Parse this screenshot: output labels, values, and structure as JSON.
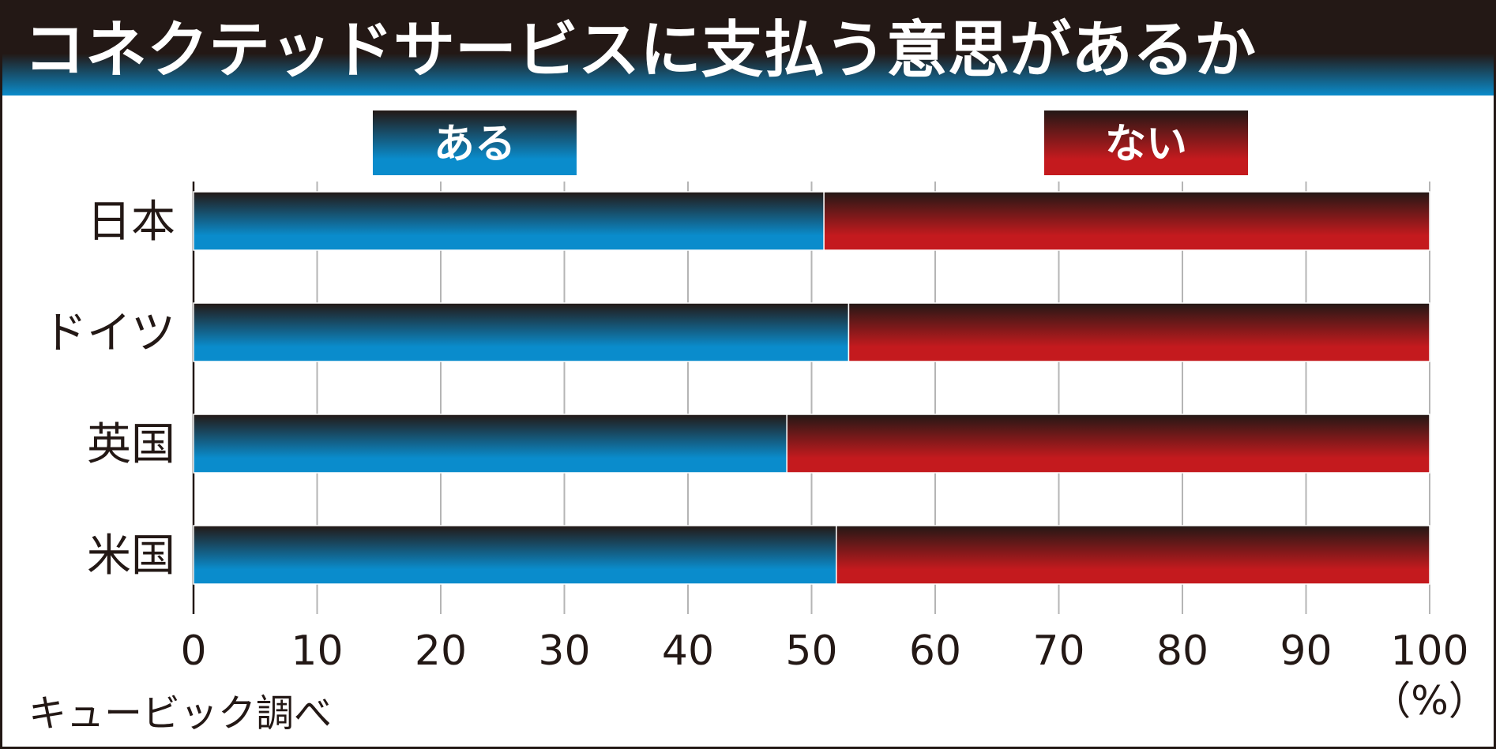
{
  "chart_data": {
    "type": "bar",
    "stacked": true,
    "orientation": "horizontal",
    "title": "コネクテッドサービスに支払う意思があるか",
    "categories": [
      "日本",
      "ドイツ",
      "英国",
      "米国"
    ],
    "series": [
      {
        "name": "ある",
        "values": [
          51,
          53,
          48,
          52
        ],
        "color": "#0e8fc8"
      },
      {
        "name": "ない",
        "values": [
          49,
          47,
          52,
          48
        ],
        "color": "#c8181c"
      }
    ],
    "xlim": [
      0,
      100
    ],
    "xticks": [
      "0",
      "10",
      "20",
      "30",
      "40",
      "50",
      "60",
      "70",
      "80",
      "90",
      "100"
    ],
    "unit_label": "（%）",
    "source": "キュービック調べ",
    "legend_position": "top"
  }
}
